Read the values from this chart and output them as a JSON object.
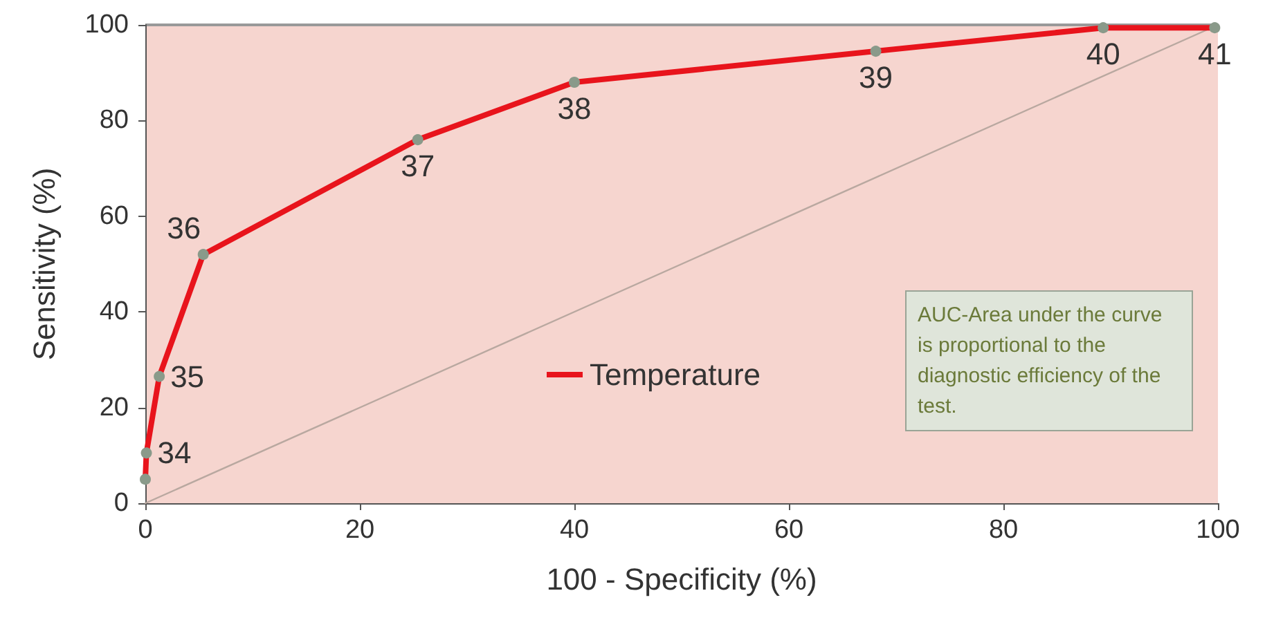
{
  "chart_data": {
    "type": "line",
    "xlabel": "100 - Specificity (%)",
    "ylabel": "Sensitivity (%)",
    "xlim": [
      0,
      100
    ],
    "ylim": [
      0,
      100
    ],
    "xticks": [
      0,
      20,
      40,
      60,
      80,
      100
    ],
    "yticks": [
      0,
      20,
      40,
      60,
      80,
      100
    ],
    "grid": false,
    "legend": "bottom",
    "marker": "circle",
    "line_style": "solid",
    "series": [
      {
        "name": "Temperature",
        "color": "#e8141c",
        "x": [
          0,
          0.1,
          1.3,
          5.4,
          25.4,
          40,
          68.1,
          89.3,
          99.7
        ],
        "values": [
          5,
          10.5,
          26.5,
          52,
          76,
          88,
          94.5,
          99.4,
          99.4
        ]
      },
      {
        "color": "#b9a8a0",
        "x": [
          0,
          100
        ],
        "values": [
          0,
          100
        ],
        "marker": "none"
      }
    ],
    "annotations": [
      {
        "text": "34",
        "x": 0.1,
        "y": 10.5
      },
      {
        "text": "35",
        "x": 1.3,
        "y": 26.5
      },
      {
        "text": "36",
        "x": 5.4,
        "y": 52
      },
      {
        "text": "37",
        "x": 25.4,
        "y": 76
      },
      {
        "text": "38",
        "x": 40,
        "y": 88
      },
      {
        "text": "39",
        "x": 68.1,
        "y": 94.5
      },
      {
        "text": "40",
        "x": 89.3,
        "y": 99.4
      },
      {
        "text": "41",
        "x": 99.7,
        "y": 99.4
      },
      "AUC-Area under the curve is proportional to the diagnostic efficiency of the test."
    ]
  }
}
